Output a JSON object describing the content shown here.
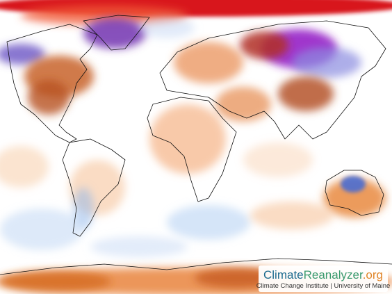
{
  "logo": {
    "name_part1": "Climate",
    "name_part2": "Reanalyzer",
    "domain": ".org",
    "credit": "Climate Change Institute | University of Maine"
  }
}
